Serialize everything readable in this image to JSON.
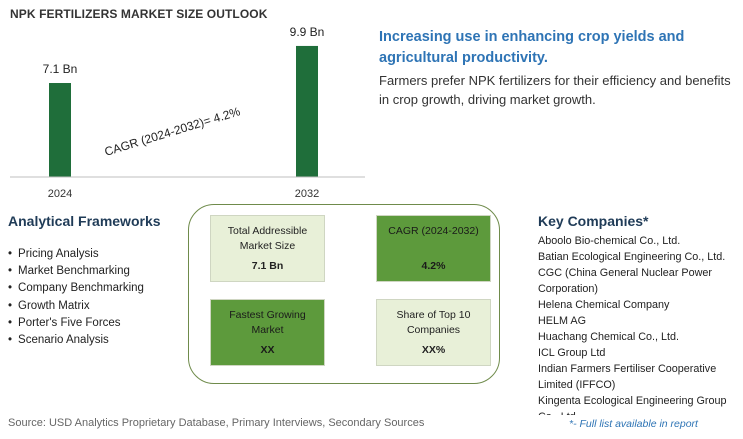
{
  "chart_data": {
    "type": "bar",
    "title": "NPK FERTILIZERS MARKET SIZE OUTLOOK",
    "categories": [
      "2024",
      "2032"
    ],
    "values": [
      7.1,
      9.9
    ],
    "data_labels": [
      "7.1 Bn",
      "9.9 Bn"
    ],
    "annotation": "CAGR (2024-2032)=  4.2%",
    "bar_color": "#1f6e3a",
    "grid": false,
    "legend": "none",
    "ylim": [
      0,
      10.5
    ]
  },
  "insight": {
    "headline": "Increasing use in enhancing crop yields and agricultural productivity.",
    "text": "Farmers prefer NPK fertilizers for their efficiency and benefits in crop growth, driving market growth."
  },
  "frameworks": {
    "title": "Analytical Frameworks",
    "items": [
      "Pricing Analysis",
      "Market Benchmarking",
      "Company Benchmarking",
      "Growth Matrix",
      "Porter's Five Forces",
      "Scenario Analysis"
    ]
  },
  "kpis": [
    {
      "label": "Total Addressible Market Size",
      "value": "7.1 Bn"
    },
    {
      "label": "CAGR (2024-2032)",
      "value": "4.2%"
    },
    {
      "label": "Fastest Growing Market",
      "value": "XX"
    },
    {
      "label": "Share of Top 10 Companies",
      "value": "XX%"
    }
  ],
  "companies": {
    "title": "Key Companies*",
    "items": [
      "Aboolo Bio-chemical Co., Ltd.",
      "Batian Ecological Engineering Co., Ltd.",
      "CGC (China General Nuclear Power Corporation)",
      "Helena Chemical Company",
      "HELM AG",
      "Huachang Chemical Co., Ltd.",
      "ICL Group Ltd",
      "Indian Farmers Fertiliser Cooperative Limited (IFFCO)",
      "Kingenta Ecological Engineering Group Co., Ltd."
    ]
  },
  "source": "Source: USD Analytics Proprietary Database, Primary Interviews, Secondary Sources",
  "footnote": "*- Full list available in report",
  "colors": {
    "accent_blue": "#2e74b5",
    "kpi_light": "#e8f0d8",
    "kpi_dark": "#5d9a3c",
    "frame": "#6f8b4b"
  }
}
